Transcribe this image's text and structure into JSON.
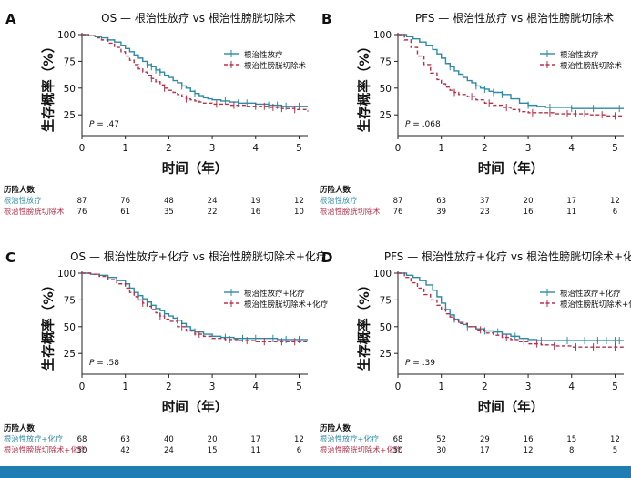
{
  "colors": {
    "teal": "#2f8aa3",
    "red": "#b5324b",
    "axis": "#222222",
    "bar": "#1f7db3"
  },
  "risk_header": "历险人数",
  "chart_data": [
    {
      "type": "line",
      "subtype": "kaplan-meier",
      "panel_letter": "A",
      "title": "OS — 根治性放疗 vs 根治性膀胱切除术",
      "xlabel": "时间（年）",
      "ylabel": "生存概率（%）",
      "xlim": [
        0,
        5.2
      ],
      "ylim": [
        0,
        100
      ],
      "x_ticks": [
        "0",
        "1",
        "2",
        "3",
        "4",
        "5"
      ],
      "y_ticks": [
        "100",
        "75",
        "50",
        "25"
      ],
      "p_value": ".47",
      "legend_position": "top-right",
      "series": [
        {
          "name": "根治性放疗",
          "style": "solid",
          "x": [
            0,
            0.15,
            0.3,
            0.45,
            0.6,
            0.75,
            0.9,
            1.0,
            1.1,
            1.2,
            1.3,
            1.4,
            1.5,
            1.6,
            1.7,
            1.8,
            1.9,
            2.0,
            2.1,
            2.2,
            2.3,
            2.4,
            2.5,
            2.6,
            2.7,
            2.8,
            2.9,
            3.0,
            3.2,
            3.4,
            3.6,
            3.8,
            4.0,
            4.3,
            4.6,
            4.9,
            5.2
          ],
          "y": [
            100,
            99,
            98,
            97,
            95,
            93,
            90,
            87,
            84,
            81,
            78,
            75,
            72,
            70,
            67,
            65,
            62,
            60,
            57,
            55,
            52,
            50,
            47,
            45,
            43,
            41,
            40,
            39,
            38,
            37,
            36,
            36,
            35,
            34,
            33,
            33,
            33
          ],
          "censor_x": [
            1.5,
            1.6,
            1.7,
            1.8,
            2.3,
            2.6,
            3.3,
            3.6,
            3.8,
            4.1,
            4.3,
            4.5,
            4.7,
            5.0
          ]
        },
        {
          "name": "根治性膀胱切除术",
          "style": "dashed",
          "x": [
            0,
            0.15,
            0.3,
            0.45,
            0.6,
            0.75,
            0.9,
            1.0,
            1.1,
            1.2,
            1.3,
            1.4,
            1.5,
            1.6,
            1.7,
            1.8,
            1.9,
            2.0,
            2.1,
            2.2,
            2.3,
            2.4,
            2.5,
            2.6,
            2.7,
            2.8,
            2.9,
            3.0,
            3.2,
            3.4,
            3.6,
            3.8,
            4.0,
            4.3,
            4.6,
            4.9,
            5.2
          ],
          "y": [
            100,
            99,
            97,
            95,
            92,
            88,
            84,
            80,
            76,
            72,
            68,
            65,
            62,
            59,
            56,
            53,
            50,
            48,
            46,
            44,
            42,
            40,
            39,
            38,
            37,
            36,
            36,
            35,
            35,
            34,
            34,
            33,
            33,
            32,
            31,
            30,
            28
          ],
          "censor_x": [
            1.6,
            1.9,
            2.4,
            3.1,
            3.5,
            4.0,
            4.2,
            4.4,
            4.6,
            4.9
          ]
        }
      ],
      "risk_table": {
        "timepoints": [
          "0",
          "1",
          "2",
          "3",
          "4",
          "5"
        ],
        "rows": [
          {
            "label": "根治性放疗",
            "values": [
              "87",
              "76",
              "48",
              "24",
              "19",
              "12"
            ]
          },
          {
            "label": "根治性膀胱切除术",
            "values": [
              "76",
              "61",
              "35",
              "22",
              "16",
              "10"
            ]
          }
        ]
      }
    },
    {
      "type": "line",
      "subtype": "kaplan-meier",
      "panel_letter": "B",
      "title": "PFS — 根治性放疗 vs 根治性膀胱切除术",
      "xlabel": "时间（年）",
      "ylabel": "生存概率（%）",
      "xlim": [
        0,
        5.2
      ],
      "ylim": [
        0,
        100
      ],
      "x_ticks": [
        "0",
        "1",
        "2",
        "3",
        "4",
        "5"
      ],
      "y_ticks": [
        "100",
        "75",
        "50",
        "25"
      ],
      "p_value": ".068",
      "legend_position": "top-right",
      "series": [
        {
          "name": "根治性放疗",
          "style": "solid",
          "x": [
            0,
            0.2,
            0.35,
            0.5,
            0.65,
            0.8,
            0.9,
            1.0,
            1.1,
            1.2,
            1.3,
            1.4,
            1.5,
            1.6,
            1.7,
            1.8,
            1.9,
            2.0,
            2.1,
            2.2,
            2.4,
            2.6,
            2.8,
            3.0,
            3.2,
            3.4,
            3.6,
            4.0,
            4.5,
            5.2
          ],
          "y": [
            100,
            98,
            96,
            93,
            90,
            86,
            82,
            78,
            73,
            70,
            66,
            63,
            60,
            57,
            55,
            52,
            50,
            49,
            47,
            46,
            44,
            40,
            36,
            34,
            33,
            32,
            32,
            31,
            31,
            31
          ],
          "censor_x": [
            1.2,
            1.5,
            1.8,
            2.0,
            2.2,
            2.4,
            3.0,
            3.5,
            4.0,
            4.5,
            5.1
          ]
        },
        {
          "name": "根治性膀胱切除术",
          "style": "dashed",
          "x": [
            0,
            0.15,
            0.3,
            0.45,
            0.6,
            0.75,
            0.9,
            1.0,
            1.1,
            1.2,
            1.3,
            1.4,
            1.6,
            1.8,
            2.0,
            2.2,
            2.4,
            2.6,
            2.8,
            3.0,
            3.3,
            3.6,
            4.0,
            4.4,
            4.8,
            5.2
          ],
          "y": [
            100,
            95,
            88,
            80,
            72,
            64,
            58,
            54,
            51,
            48,
            46,
            44,
            42,
            39,
            36,
            34,
            32,
            30,
            28,
            27,
            27,
            26,
            26,
            25,
            24,
            24
          ],
          "censor_x": [
            1.3,
            1.7,
            2.1,
            2.5,
            3.1,
            3.5,
            3.9,
            4.1,
            4.3,
            4.7,
            5.0
          ]
        }
      ],
      "risk_table": {
        "timepoints": [
          "0",
          "1",
          "2",
          "3",
          "4",
          "5"
        ],
        "rows": [
          {
            "label": "根治性放疗",
            "values": [
              "87",
              "63",
              "37",
              "20",
              "17",
              "12"
            ]
          },
          {
            "label": "根治性膀胱切除术",
            "values": [
              "76",
              "39",
              "23",
              "16",
              "11",
              "6"
            ]
          }
        ]
      }
    },
    {
      "type": "line",
      "subtype": "kaplan-meier",
      "panel_letter": "C",
      "title": "OS — 根治性放疗+化疗 vs 根治性膀胱切除术+化疗",
      "xlabel": "时间（年）",
      "ylabel": "生存概率（%）",
      "xlim": [
        0,
        5.2
      ],
      "ylim": [
        0,
        100
      ],
      "x_ticks": [
        "0",
        "1",
        "2",
        "3",
        "4",
        "5"
      ],
      "y_ticks": [
        "100",
        "75",
        "50",
        "25"
      ],
      "p_value": ".58",
      "legend_position": "top-right",
      "series": [
        {
          "name": "根治性放疗+化疗",
          "style": "solid",
          "x": [
            0,
            0.2,
            0.4,
            0.6,
            0.8,
            1.0,
            1.1,
            1.2,
            1.3,
            1.4,
            1.5,
            1.6,
            1.7,
            1.8,
            1.9,
            2.0,
            2.1,
            2.2,
            2.3,
            2.4,
            2.5,
            2.6,
            2.8,
            3.0,
            3.2,
            3.5,
            4.0,
            4.5,
            5.2
          ],
          "y": [
            100,
            99,
            98,
            96,
            93,
            90,
            86,
            82,
            79,
            76,
            73,
            70,
            67,
            65,
            62,
            60,
            58,
            56,
            53,
            50,
            47,
            45,
            43,
            41,
            40,
            39,
            39,
            38,
            38
          ],
          "censor_x": [
            1.3,
            1.6,
            1.9,
            2.2,
            2.6,
            3.3,
            3.7,
            4.0,
            4.4,
            4.7,
            5.0
          ]
        },
        {
          "name": "根治性膀胱切除术+化疗",
          "style": "dashed",
          "x": [
            0,
            0.2,
            0.4,
            0.6,
            0.8,
            1.0,
            1.1,
            1.2,
            1.3,
            1.4,
            1.5,
            1.6,
            1.7,
            1.8,
            1.9,
            2.0,
            2.2,
            2.4,
            2.6,
            2.8,
            3.0,
            3.3,
            3.6,
            4.0,
            4.5,
            5.2
          ],
          "y": [
            100,
            99,
            97,
            94,
            90,
            86,
            82,
            78,
            75,
            72,
            69,
            66,
            63,
            60,
            57,
            55,
            50,
            46,
            43,
            41,
            39,
            38,
            37,
            36,
            36,
            36
          ],
          "censor_x": [
            1.4,
            1.8,
            2.3,
            2.7,
            3.4,
            3.8,
            4.2,
            4.6,
            4.9
          ]
        }
      ],
      "risk_table": {
        "timepoints": [
          "0",
          "1",
          "2",
          "3",
          "4",
          "5"
        ],
        "rows": [
          {
            "label": "根治性放疗+化疗",
            "values": [
              "68",
              "63",
              "40",
              "20",
              "17",
              "12"
            ]
          },
          {
            "label": "根治性膀胱切除术+化疗",
            "values": [
              "50",
              "42",
              "24",
              "15",
              "11",
              "6"
            ]
          }
        ]
      }
    },
    {
      "type": "line",
      "subtype": "kaplan-meier",
      "panel_letter": "D",
      "title": "PFS — 根治性放疗+化疗 vs 根治性膀胱切除术+化疗",
      "xlabel": "时间（年）",
      "ylabel": "生存概率（%）",
      "xlim": [
        0,
        5.2
      ],
      "ylim": [
        0,
        100
      ],
      "x_ticks": [
        "0",
        "1",
        "2",
        "3",
        "4",
        "5"
      ],
      "y_ticks": [
        "100",
        "75",
        "50",
        "25"
      ],
      "p_value": ".39",
      "legend_position": "top-right",
      "series": [
        {
          "name": "根治性放疗+化疗",
          "style": "solid",
          "x": [
            0,
            0.2,
            0.35,
            0.5,
            0.65,
            0.8,
            0.9,
            1.0,
            1.1,
            1.2,
            1.3,
            1.4,
            1.5,
            1.6,
            1.8,
            2.0,
            2.2,
            2.4,
            2.6,
            2.8,
            3.0,
            3.2,
            3.5,
            4.0,
            4.5,
            5.2
          ],
          "y": [
            100,
            98,
            96,
            93,
            89,
            84,
            78,
            72,
            66,
            61,
            57,
            54,
            52,
            50,
            48,
            46,
            45,
            43,
            41,
            39,
            38,
            37,
            37,
            37,
            37,
            37
          ],
          "censor_x": [
            1.3,
            1.6,
            2.0,
            2.3,
            2.7,
            3.3,
            3.9,
            4.3,
            4.6,
            4.8,
            5.0,
            5.1
          ]
        },
        {
          "name": "根治性膀胱切除术+化疗",
          "style": "dashed",
          "x": [
            0,
            0.15,
            0.3,
            0.45,
            0.6,
            0.75,
            0.9,
            1.0,
            1.1,
            1.2,
            1.3,
            1.4,
            1.6,
            1.8,
            2.0,
            2.2,
            2.4,
            2.6,
            2.8,
            3.0,
            3.3,
            3.6,
            4.0,
            4.5,
            5.2
          ],
          "y": [
            100,
            96,
            91,
            86,
            80,
            75,
            70,
            66,
            62,
            59,
            56,
            53,
            50,
            47,
            44,
            42,
            40,
            38,
            36,
            34,
            33,
            32,
            31,
            31,
            31
          ],
          "censor_x": [
            1.5,
            1.9,
            2.5,
            2.9,
            3.2,
            3.6,
            4.1,
            4.5,
            5.0
          ]
        }
      ],
      "risk_table": {
        "timepoints": [
          "0",
          "1",
          "2",
          "3",
          "4",
          "5"
        ],
        "rows": [
          {
            "label": "根治性放疗+化疗",
            "values": [
              "68",
              "52",
              "29",
              "16",
              "15",
              "12"
            ]
          },
          {
            "label": "根治性膀胱切除术+化疗",
            "values": [
              "50",
              "30",
              "17",
              "12",
              "8",
              "5"
            ]
          }
        ]
      }
    }
  ]
}
